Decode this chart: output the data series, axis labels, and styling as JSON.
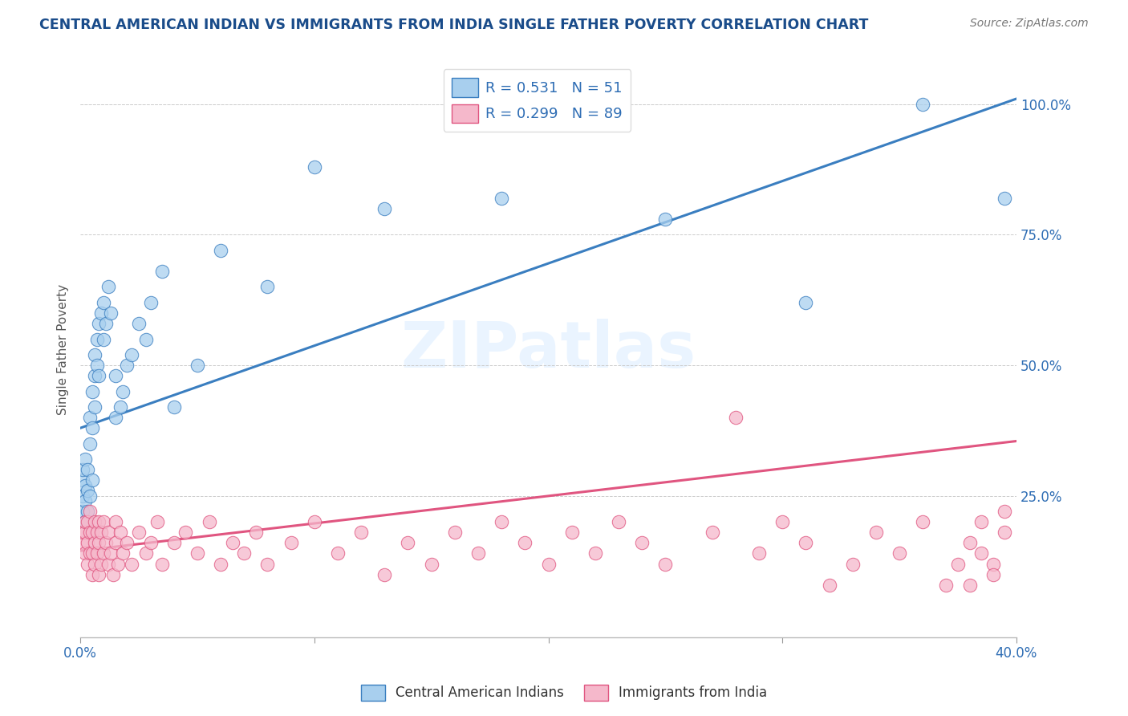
{
  "title": "CENTRAL AMERICAN INDIAN VS IMMIGRANTS FROM INDIA SINGLE FATHER POVERTY CORRELATION CHART",
  "source": "Source: ZipAtlas.com",
  "ylabel": "Single Father Poverty",
  "blue_R": 0.531,
  "blue_N": 51,
  "pink_R": 0.299,
  "pink_N": 89,
  "blue_color": "#A8CFEE",
  "pink_color": "#F5B8CB",
  "blue_line_color": "#3A7EC0",
  "pink_line_color": "#E05580",
  "text_color": "#2E6DB4",
  "title_color": "#1A4C8A",
  "watermark_text": "ZIPatlas",
  "background_color": "#FFFFFF",
  "xlim": [
    0.0,
    0.4
  ],
  "ylim": [
    -0.02,
    1.08
  ],
  "blue_scatter_x": [
    0.001,
    0.001,
    0.001,
    0.001,
    0.002,
    0.002,
    0.002,
    0.002,
    0.003,
    0.003,
    0.003,
    0.004,
    0.004,
    0.004,
    0.005,
    0.005,
    0.005,
    0.006,
    0.006,
    0.006,
    0.007,
    0.007,
    0.008,
    0.008,
    0.009,
    0.01,
    0.01,
    0.011,
    0.012,
    0.013,
    0.015,
    0.015,
    0.017,
    0.018,
    0.02,
    0.022,
    0.025,
    0.028,
    0.03,
    0.035,
    0.04,
    0.05,
    0.06,
    0.08,
    0.1,
    0.13,
    0.18,
    0.25,
    0.31,
    0.36,
    0.395
  ],
  "blue_scatter_y": [
    0.22,
    0.25,
    0.28,
    0.3,
    0.2,
    0.24,
    0.27,
    0.32,
    0.22,
    0.26,
    0.3,
    0.25,
    0.35,
    0.4,
    0.28,
    0.38,
    0.45,
    0.42,
    0.48,
    0.52,
    0.5,
    0.55,
    0.48,
    0.58,
    0.6,
    0.55,
    0.62,
    0.58,
    0.65,
    0.6,
    0.4,
    0.48,
    0.42,
    0.45,
    0.5,
    0.52,
    0.58,
    0.55,
    0.62,
    0.68,
    0.42,
    0.5,
    0.72,
    0.65,
    0.88,
    0.8,
    0.82,
    0.78,
    0.62,
    1.0,
    0.82
  ],
  "pink_scatter_x": [
    0.001,
    0.001,
    0.002,
    0.002,
    0.002,
    0.003,
    0.003,
    0.003,
    0.004,
    0.004,
    0.004,
    0.005,
    0.005,
    0.005,
    0.006,
    0.006,
    0.006,
    0.007,
    0.007,
    0.008,
    0.008,
    0.008,
    0.009,
    0.009,
    0.01,
    0.01,
    0.011,
    0.012,
    0.012,
    0.013,
    0.014,
    0.015,
    0.015,
    0.016,
    0.017,
    0.018,
    0.02,
    0.022,
    0.025,
    0.028,
    0.03,
    0.033,
    0.035,
    0.04,
    0.045,
    0.05,
    0.055,
    0.06,
    0.065,
    0.07,
    0.075,
    0.08,
    0.09,
    0.1,
    0.11,
    0.12,
    0.13,
    0.14,
    0.15,
    0.16,
    0.17,
    0.18,
    0.19,
    0.2,
    0.21,
    0.22,
    0.23,
    0.24,
    0.25,
    0.27,
    0.28,
    0.29,
    0.3,
    0.31,
    0.32,
    0.33,
    0.34,
    0.35,
    0.36,
    0.37,
    0.38,
    0.385,
    0.39,
    0.395,
    0.395,
    0.39,
    0.385,
    0.38,
    0.375
  ],
  "pink_scatter_y": [
    0.16,
    0.18,
    0.14,
    0.18,
    0.2,
    0.12,
    0.16,
    0.2,
    0.14,
    0.18,
    0.22,
    0.1,
    0.14,
    0.18,
    0.12,
    0.16,
    0.2,
    0.14,
    0.18,
    0.1,
    0.16,
    0.2,
    0.12,
    0.18,
    0.14,
    0.2,
    0.16,
    0.12,
    0.18,
    0.14,
    0.1,
    0.16,
    0.2,
    0.12,
    0.18,
    0.14,
    0.16,
    0.12,
    0.18,
    0.14,
    0.16,
    0.2,
    0.12,
    0.16,
    0.18,
    0.14,
    0.2,
    0.12,
    0.16,
    0.14,
    0.18,
    0.12,
    0.16,
    0.2,
    0.14,
    0.18,
    0.1,
    0.16,
    0.12,
    0.18,
    0.14,
    0.2,
    0.16,
    0.12,
    0.18,
    0.14,
    0.2,
    0.16,
    0.12,
    0.18,
    0.4,
    0.14,
    0.2,
    0.16,
    0.08,
    0.12,
    0.18,
    0.14,
    0.2,
    0.08,
    0.16,
    0.2,
    0.12,
    0.22,
    0.18,
    0.1,
    0.14,
    0.08,
    0.12
  ],
  "blue_line_x0": 0.0,
  "blue_line_x1": 0.4,
  "blue_line_y0": 0.38,
  "blue_line_y1": 1.01,
  "pink_line_x0": 0.0,
  "pink_line_x1": 0.4,
  "pink_line_y0": 0.145,
  "pink_line_y1": 0.355
}
